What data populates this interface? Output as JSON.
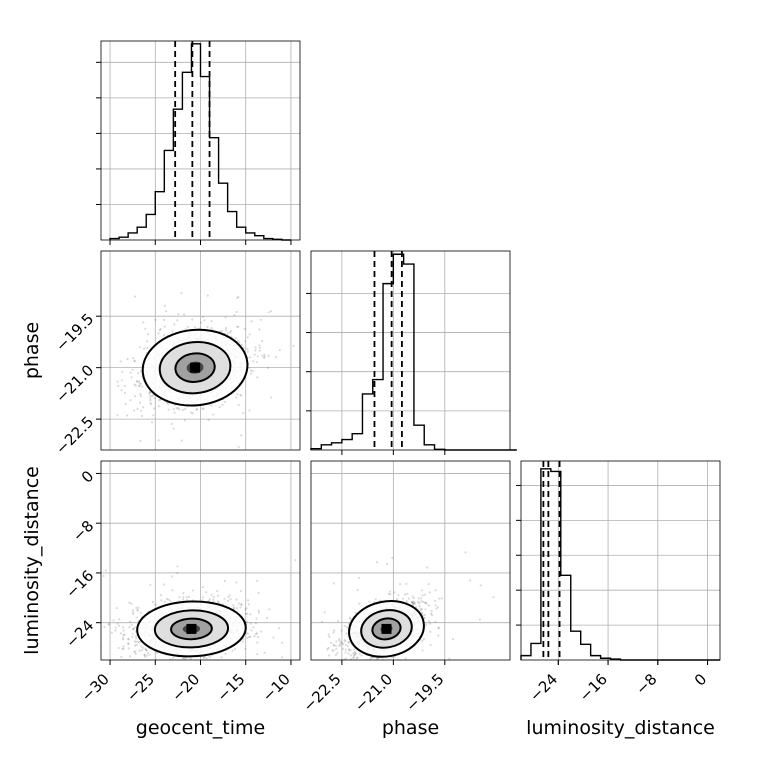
{
  "chart_data": {
    "type": "corner",
    "parameters": [
      "geocent_time",
      "phase",
      "luminosity_distance"
    ],
    "axis_labels": {
      "geocent_time": "geocent_time",
      "phase": "phase",
      "luminosity_distance": "luminosity_distance"
    },
    "ranges": {
      "geocent_time": [
        -31,
        -9
      ],
      "phase": [
        -23.4,
        -17.6
      ],
      "luminosity_distance": [
        -30,
        2
      ]
    },
    "ticks": {
      "geocent_time": {
        "values": [
          -30,
          -25,
          -20,
          -15,
          -10
        ],
        "labels": [
          "−30",
          "−25",
          "−20",
          "−15",
          "−10"
        ]
      },
      "phase": {
        "values": [
          -22.5,
          -21.0,
          -19.5
        ],
        "labels": [
          "−22.5",
          "−21.0",
          "−19.5"
        ]
      },
      "luminosity_distance": {
        "values": [
          -24,
          -16,
          -8,
          0
        ],
        "labels": [
          "−24",
          "−16",
          "−8",
          "0"
        ]
      }
    },
    "quantiles": {
      "geocent_time": [
        -22.8,
        -20.9,
        -19.0
      ],
      "phase": [
        -21.55,
        -21.05,
        -20.75
      ],
      "luminosity_distance": [
        -26.4,
        -25.6,
        -23.8
      ]
    },
    "histograms": {
      "geocent_time": {
        "bins": [
          -30,
          -29,
          -28,
          -27,
          -26,
          -25,
          -24,
          -23,
          -22,
          -21,
          -20,
          -19,
          -18,
          -17,
          -16,
          -15,
          -14,
          -13,
          -12,
          -11
        ],
        "counts": [
          1,
          2,
          5,
          9,
          18,
          34,
          63,
          92,
          118,
          138,
          115,
          72,
          40,
          20,
          9,
          5,
          3,
          1,
          0.5,
          0
        ],
        "ylim": [
          0,
          140
        ],
        "ytick_values": [
          25,
          50,
          75,
          100,
          125
        ]
      },
      "phase": {
        "bins": [
          -23.4,
          -23.1,
          -22.8,
          -22.5,
          -22.2,
          -21.9,
          -21.6,
          -21.3,
          -21.0,
          -20.7,
          -20.4,
          -20.1,
          -19.8,
          -19.5,
          -19.2,
          -18.9,
          -18.6,
          -18.3,
          -18.0,
          -17.7
        ],
        "counts": [
          2,
          8,
          11,
          16,
          25,
          86,
          108,
          255,
          300,
          285,
          38,
          8,
          1,
          0,
          0,
          0,
          0,
          0,
          0,
          0
        ],
        "ylim": [
          0,
          305
        ],
        "ytick_values": [
          60,
          120,
          180,
          240
        ]
      },
      "luminosity_distance": {
        "bins": [
          -30,
          -28.4,
          -26.8,
          -25.2,
          -23.6,
          -22,
          -20.4,
          -18.8,
          -17.2,
          -15.6,
          -14,
          -12.4,
          -10.8,
          -9.2,
          -7.6,
          -6,
          -4.4,
          -2.8,
          -1.2,
          0.4
        ],
        "counts": [
          25,
          95,
          1095,
          1080,
          485,
          165,
          90,
          25,
          10,
          5,
          0,
          0,
          0,
          0,
          0,
          0,
          0,
          0,
          0,
          0
        ],
        "ylim": [
          0,
          1140
        ],
        "ytick_values": [
          200,
          400,
          600,
          800,
          1000
        ]
      }
    },
    "joint": [
      {
        "x": "geocent_time",
        "y": "phase",
        "center": [
          -20.6,
          -21.0
        ],
        "sigma": [
          2.9,
          0.55
        ],
        "rho": 0.25
      },
      {
        "x": "geocent_time",
        "y": "luminosity_distance",
        "center": [
          -21.0,
          -25.0
        ],
        "sigma": [
          3.0,
          2.2
        ],
        "rho": 0.1
      },
      {
        "x": "phase",
        "y": "luminosity_distance",
        "center": [
          -21.2,
          -25.0
        ],
        "sigma": [
          0.55,
          2.2
        ],
        "rho": 0.45
      }
    ],
    "grid": true,
    "legend": "none"
  }
}
